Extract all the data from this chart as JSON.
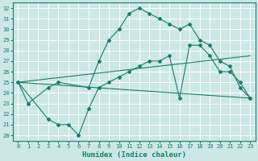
{
  "title": "",
  "xlabel": "Humidex (Indice chaleur)",
  "bg_color": "#cce8e4",
  "grid_color": "#ffffff",
  "line_color": "#1a7a6e",
  "xlim": [
    -0.5,
    23.5
  ],
  "ylim": [
    19.5,
    32.5
  ],
  "yticks": [
    20,
    21,
    22,
    23,
    24,
    25,
    26,
    27,
    28,
    29,
    30,
    31,
    32
  ],
  "xticks": [
    0,
    1,
    2,
    3,
    4,
    5,
    6,
    7,
    8,
    9,
    10,
    11,
    12,
    13,
    14,
    15,
    16,
    17,
    18,
    19,
    20,
    21,
    22,
    23
  ],
  "line1_x": [
    0,
    1,
    3,
    4,
    7,
    8,
    9,
    10,
    11,
    12,
    13,
    14,
    15,
    16,
    17,
    18,
    19,
    20,
    21,
    22,
    23
  ],
  "line1_y": [
    25,
    23,
    24.5,
    25,
    24.5,
    27,
    29,
    30,
    31.5,
    32,
    31.5,
    31,
    30.5,
    30,
    30.5,
    29,
    28.5,
    27,
    26.5,
    24.5,
    23.5
  ],
  "line2_x": [
    0,
    3,
    4,
    5,
    6,
    7,
    8,
    9,
    10,
    11,
    12,
    13,
    14,
    15,
    16,
    17,
    18,
    19,
    20,
    21,
    22,
    23
  ],
  "line2_y": [
    25,
    21.5,
    21,
    21,
    20,
    22.5,
    24.5,
    25,
    25.5,
    26,
    26.5,
    27,
    27,
    27.5,
    23.5,
    28.5,
    28.5,
    27.5,
    26,
    26,
    25,
    23.5
  ],
  "line3_x": [
    0,
    23
  ],
  "line3_y": [
    25.0,
    27.5
  ],
  "line4_x": [
    0,
    23
  ],
  "line4_y": [
    25.0,
    23.5
  ],
  "tick_fontsize": 5.0,
  "xlabel_fontsize": 6.5
}
